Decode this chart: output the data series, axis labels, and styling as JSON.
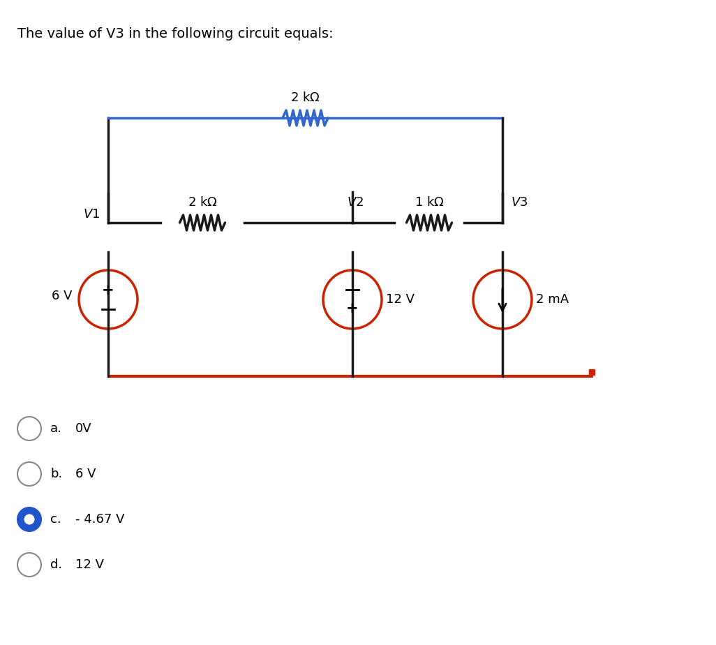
{
  "title": "The value of V3 in the following circuit equals:",
  "title_fontsize": 14,
  "background_color": "#ffffff",
  "circuit": {
    "wire_color_black": "#1a1a1a",
    "wire_color_blue": "#3366cc",
    "wire_color_red": "#cc2200",
    "wire_lw": 2.5
  },
  "options": [
    {
      "label": "a.",
      "text": "0V",
      "selected": false
    },
    {
      "label": "b.",
      "text": "6 V",
      "selected": false
    },
    {
      "label": "c.",
      "text": "- 4.67 V",
      "selected": true
    },
    {
      "label": "d.",
      "text": "12 V",
      "selected": false
    }
  ]
}
